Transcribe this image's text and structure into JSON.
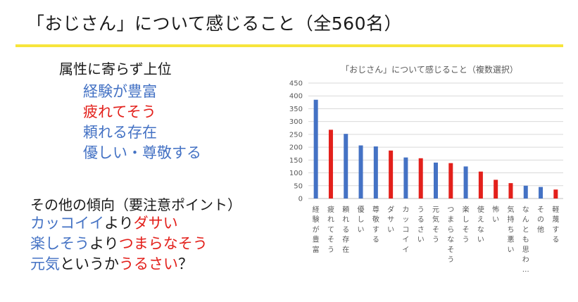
{
  "title": "「おじさん」について感じること（全560名）",
  "attributes": {
    "heading": "属性に寄らず上位",
    "items": [
      {
        "text": "経験が豊富",
        "color": "#4472c4"
      },
      {
        "text": "疲れてそう",
        "color": "#e3201b"
      },
      {
        "text": "頼れる存在",
        "color": "#4472c4"
      },
      {
        "text": "優しい・尊敬する",
        "color": "#4472c4"
      }
    ]
  },
  "trends": {
    "heading": "その他の傾向（要注意ポイント）",
    "lines": [
      [
        {
          "text": "カッコイイ",
          "color": "#4472c4"
        },
        {
          "text": "より",
          "color": "#1a1a1a"
        },
        {
          "text": "ダサい",
          "color": "#e3201b"
        }
      ],
      [
        {
          "text": "楽しそう",
          "color": "#4472c4"
        },
        {
          "text": "より",
          "color": "#1a1a1a"
        },
        {
          "text": "つまらなそう",
          "color": "#e3201b"
        }
      ],
      [
        {
          "text": "元気",
          "color": "#4472c4"
        },
        {
          "text": "というか",
          "color": "#1a1a1a"
        },
        {
          "text": "うるさい",
          "color": "#e3201b"
        },
        {
          "text": "？",
          "color": "#1a1a1a"
        }
      ]
    ]
  },
  "chart_data": {
    "type": "bar",
    "title": "「おじさん」について感じること（複数選択）",
    "ylim": [
      0,
      450
    ],
    "yticks": [
      0,
      50,
      100,
      150,
      200,
      250,
      300,
      350,
      400,
      450
    ],
    "grid": true,
    "categories": [
      "経験が豊富",
      "疲れてそう",
      "頼れる存在",
      "優しい",
      "尊敬する",
      "ダサい",
      "カッコイイ",
      "うるさい",
      "元気そう",
      "つまらなそう",
      "楽しそう",
      "使えない",
      "怖い",
      "気持ち悪い",
      "なんとも思わ…",
      "その他",
      "軽蔑する"
    ],
    "values": [
      385,
      268,
      252,
      207,
      203,
      187,
      160,
      157,
      140,
      138,
      125,
      105,
      73,
      60,
      50,
      45,
      35
    ],
    "bar_colors": [
      "#4472c4",
      "#e3201b",
      "#4472c4",
      "#4472c4",
      "#4472c4",
      "#e3201b",
      "#4472c4",
      "#e3201b",
      "#4472c4",
      "#e3201b",
      "#4472c4",
      "#e3201b",
      "#e3201b",
      "#e3201b",
      "#4472c4",
      "#4472c4",
      "#e3201b"
    ]
  }
}
